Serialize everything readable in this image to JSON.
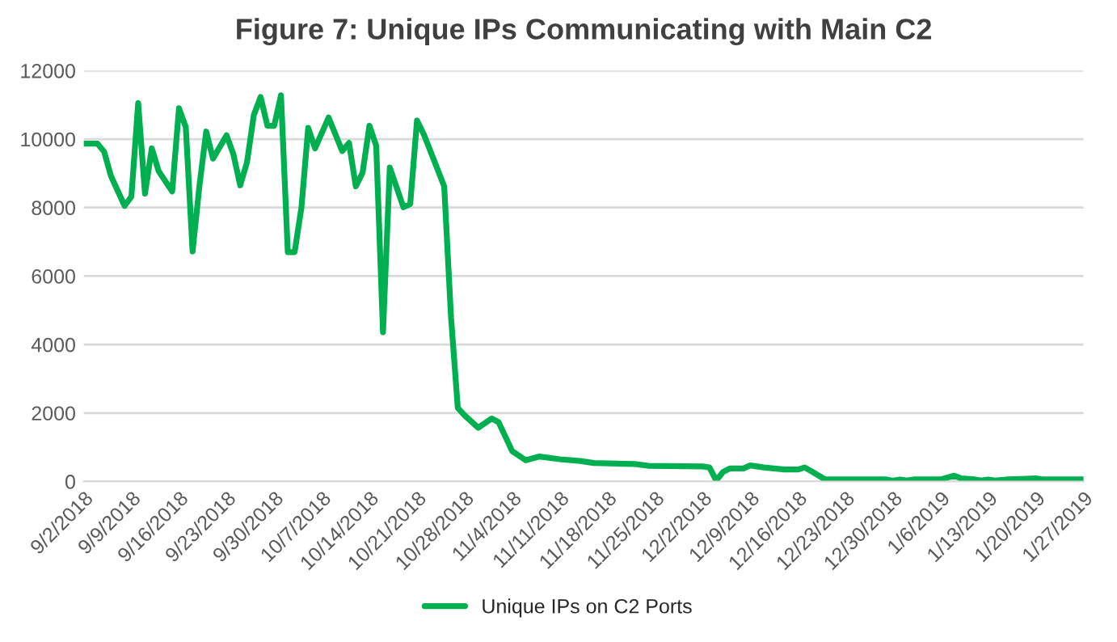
{
  "chart_data": {
    "type": "line",
    "title": "Figure 7: Unique IPs Communicating with Main C2",
    "x": [
      "2018-09-02",
      "2018-09-04",
      "2018-09-05",
      "2018-09-06",
      "2018-09-08",
      "2018-09-09",
      "2018-09-10",
      "2018-09-11",
      "2018-09-12",
      "2018-09-13",
      "2018-09-15",
      "2018-09-16",
      "2018-09-17",
      "2018-09-18",
      "2018-09-19",
      "2018-09-20",
      "2018-09-21",
      "2018-09-23",
      "2018-09-24",
      "2018-09-25",
      "2018-09-26",
      "2018-09-27",
      "2018-09-28",
      "2018-09-29",
      "2018-09-30",
      "2018-10-01",
      "2018-10-02",
      "2018-10-03",
      "2018-10-04",
      "2018-10-05",
      "2018-10-06",
      "2018-10-08",
      "2018-10-10",
      "2018-10-11",
      "2018-10-12",
      "2018-10-13",
      "2018-10-14",
      "2018-10-15",
      "2018-10-16",
      "2018-10-17",
      "2018-10-19",
      "2018-10-20",
      "2018-10-21",
      "2018-10-22",
      "2018-10-25",
      "2018-10-26",
      "2018-10-27",
      "2018-10-28",
      "2018-10-30",
      "2018-11-01",
      "2018-11-02",
      "2018-11-04",
      "2018-11-06",
      "2018-11-08",
      "2018-11-11",
      "2018-11-14",
      "2018-11-16",
      "2018-11-22",
      "2018-11-24",
      "2018-12-02",
      "2018-12-03",
      "2018-12-04",
      "2018-12-05",
      "2018-12-06",
      "2018-12-08",
      "2018-12-09",
      "2018-12-11",
      "2018-12-14",
      "2018-12-16",
      "2018-12-17",
      "2018-12-18",
      "2018-12-20",
      "2018-12-29",
      "2018-12-30",
      "2018-12-31",
      "2019-01-01",
      "2019-01-02",
      "2019-01-06",
      "2019-01-08",
      "2019-01-09",
      "2019-01-11",
      "2019-01-12",
      "2019-01-13",
      "2019-01-14",
      "2019-01-16",
      "2019-01-20",
      "2019-01-21",
      "2019-01-27"
    ],
    "series": [
      {
        "name": "Unique IPs on C2 Ports",
        "color": "#00b050",
        "values": [
          9870,
          9870,
          9630,
          8920,
          8050,
          8320,
          11050,
          8410,
          9730,
          9070,
          8470,
          10900,
          10350,
          6720,
          8620,
          10220,
          9430,
          10110,
          9560,
          8650,
          9320,
          10700,
          11230,
          10390,
          10390,
          11280,
          6700,
          6700,
          7990,
          10330,
          9730,
          10630,
          9650,
          9890,
          8620,
          9020,
          10390,
          9810,
          4360,
          9170,
          8010,
          8100,
          10540,
          10140,
          8620,
          4800,
          2150,
          1930,
          1570,
          1840,
          1730,
          885,
          620,
          730,
          650,
          600,
          540,
          510,
          460,
          440,
          410,
          30,
          280,
          380,
          380,
          470,
          410,
          350,
          350,
          410,
          300,
          60,
          60,
          20,
          60,
          30,
          60,
          60,
          170,
          90,
          60,
          30,
          60,
          30,
          60,
          90,
          60,
          60
        ]
      }
    ],
    "xlim": [
      "2018-09-02",
      "2019-01-27"
    ],
    "xticks": [
      {
        "value": "2018-09-02",
        "label": "9/2/2018"
      },
      {
        "value": "2018-09-09",
        "label": "9/9/2018"
      },
      {
        "value": "2018-09-16",
        "label": "9/16/2018"
      },
      {
        "value": "2018-09-23",
        "label": "9/23/2018"
      },
      {
        "value": "2018-09-30",
        "label": "9/30/2018"
      },
      {
        "value": "2018-10-07",
        "label": "10/7/2018"
      },
      {
        "value": "2018-10-14",
        "label": "10/14/2018"
      },
      {
        "value": "2018-10-21",
        "label": "10/21/2018"
      },
      {
        "value": "2018-10-28",
        "label": "10/28/2018"
      },
      {
        "value": "2018-11-04",
        "label": "11/4/2018"
      },
      {
        "value": "2018-11-11",
        "label": "11/11/2018"
      },
      {
        "value": "2018-11-18",
        "label": "11/18/2018"
      },
      {
        "value": "2018-11-25",
        "label": "11/25/2018"
      },
      {
        "value": "2018-12-02",
        "label": "12/2/2018"
      },
      {
        "value": "2018-12-09",
        "label": "12/9/2018"
      },
      {
        "value": "2018-12-16",
        "label": "12/16/2018"
      },
      {
        "value": "2018-12-23",
        "label": "12/23/2018"
      },
      {
        "value": "2018-12-30",
        "label": "12/30/2018"
      },
      {
        "value": "2019-01-06",
        "label": "1/6/2019"
      },
      {
        "value": "2019-01-13",
        "label": "1/13/2019"
      },
      {
        "value": "2019-01-20",
        "label": "1/20/2019"
      },
      {
        "value": "2019-01-27",
        "label": "1/27/2019"
      }
    ],
    "ylim": [
      0,
      12000
    ],
    "yticks": [
      0,
      2000,
      4000,
      6000,
      8000,
      10000,
      12000
    ],
    "grid": "y",
    "legend": "bottom"
  }
}
